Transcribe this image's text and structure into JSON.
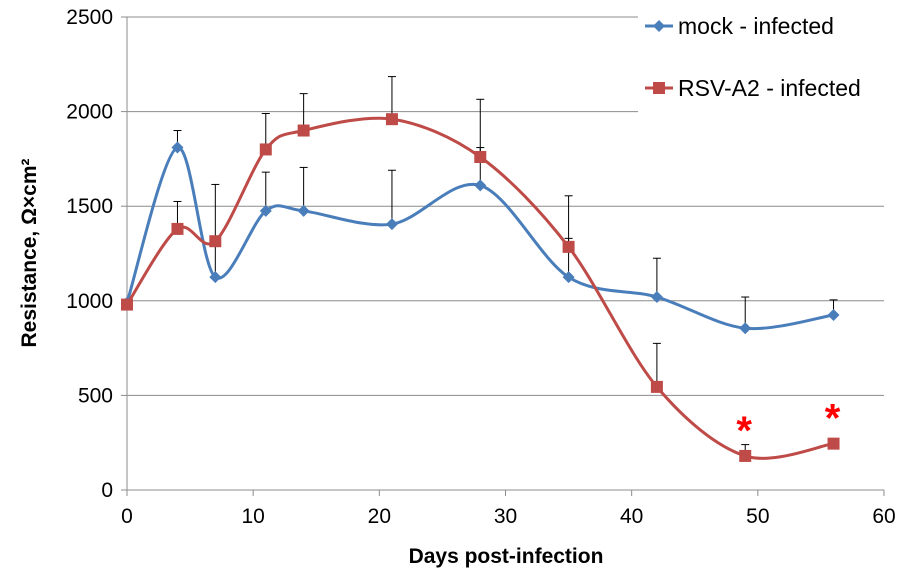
{
  "chart_data": {
    "type": "line",
    "xlabel": "Days post-infection",
    "ylabel": "Resistance, Ω×cm²",
    "xlim": [
      0,
      60
    ],
    "ylim": [
      0,
      2500
    ],
    "x_ticks": [
      0,
      10,
      20,
      30,
      40,
      50,
      60
    ],
    "y_ticks": [
      0,
      500,
      1000,
      1500,
      2000,
      2500
    ],
    "grid": "horizontal",
    "legend_position": "top-right",
    "series": [
      {
        "name": "mock - infected",
        "color": "#4a7ebb",
        "marker": "diamond",
        "x": [
          0,
          4,
          7,
          11,
          14,
          21,
          28,
          35,
          42,
          49,
          56
        ],
        "values": [
          990,
          1810,
          1125,
          1475,
          1475,
          1405,
          1610,
          1125,
          1020,
          855,
          925
        ],
        "error_plus": [
          0,
          90,
          490,
          205,
          230,
          285,
          200,
          205,
          205,
          165,
          80
        ]
      },
      {
        "name": "RSV-A2 - infected",
        "color": "#be4b48",
        "marker": "square",
        "x": [
          0,
          4,
          7,
          11,
          14,
          21,
          28,
          35,
          42,
          49,
          56
        ],
        "values": [
          980,
          1380,
          1315,
          1800,
          1900,
          1960,
          1760,
          1285,
          545,
          180,
          245
        ],
        "error_plus": [
          0,
          145,
          0,
          190,
          195,
          225,
          305,
          270,
          230,
          60,
          0
        ]
      }
    ],
    "annotations": [
      {
        "text": "*",
        "x": 49,
        "y": 180
      },
      {
        "text": "*",
        "x": 56,
        "y": 245
      }
    ]
  }
}
